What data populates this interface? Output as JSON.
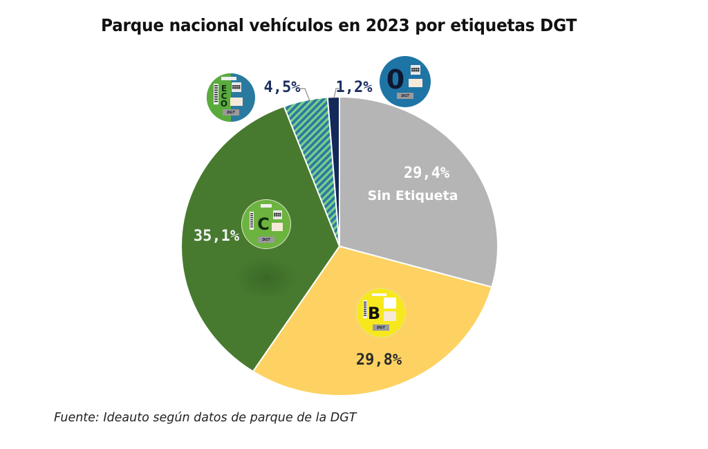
{
  "chart_data": {
    "type": "pie",
    "title": "Parque nacional vehículos en 2023 por etiquetas DGT",
    "source": "Fuente: Ideauto según datos de parque de la DGT",
    "start": "12 o'clock",
    "direction": "clockwise",
    "slices": [
      {
        "key": "sin-etiqueta",
        "label": "Sin Etiqueta",
        "value": 29.4,
        "value_label": "29,4%",
        "color": "#b5b5b5",
        "label_color": "#ffffff",
        "badge": null
      },
      {
        "key": "b",
        "label": "B",
        "value": 29.8,
        "value_label": "29,8%",
        "color": "#fdd262",
        "label_color": "#2a2a2a",
        "badge": "B"
      },
      {
        "key": "c",
        "label": "C",
        "value": 35.1,
        "value_label": "35,1%",
        "color": "#477a2f",
        "label_color": "#f2f2f2",
        "badge": "C"
      },
      {
        "key": "eco",
        "label": "ECO",
        "value": 4.5,
        "value_label": "4,5%",
        "color": "#2a7aa0",
        "hatch_color": "#7ecf8a",
        "label_color": "#1c2e5e",
        "badge": "ECO"
      },
      {
        "key": "cero",
        "label": "0",
        "value": 1.2,
        "value_label": "1,2%",
        "color": "#14285a",
        "label_color": "#1c2e5e",
        "badge": "0"
      }
    ],
    "badges": {
      "brand": "DGT",
      "eco_letters": [
        "E",
        "C",
        "O"
      ],
      "c_letter": "C",
      "b_letter": "B",
      "zero_letter": "0"
    }
  }
}
